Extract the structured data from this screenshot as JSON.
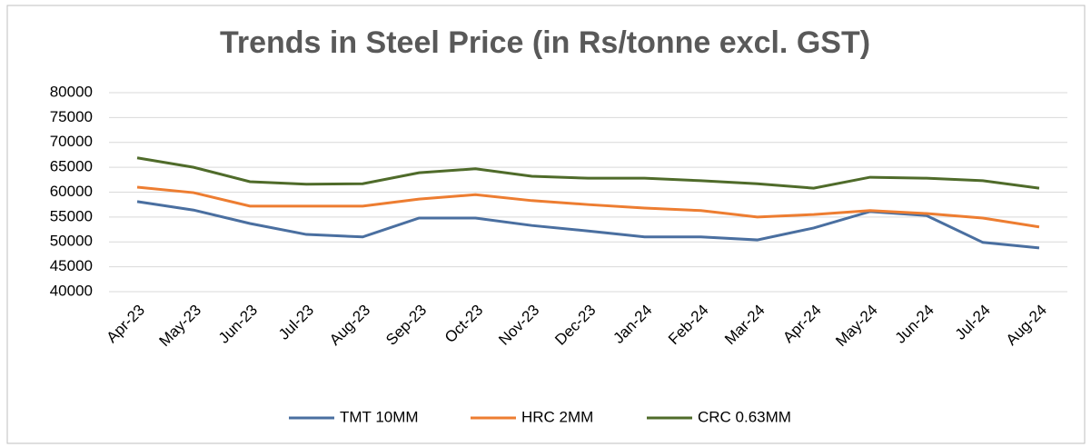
{
  "chart_data": {
    "type": "line",
    "title": "Trends in Steel Price (in Rs/tonne excl. GST)",
    "categories": [
      "Apr-23",
      "May-23",
      "Jun-23",
      "Jul-23",
      "Aug-23",
      "Sep-23",
      "Oct-23",
      "Nov-23",
      "Dec-23",
      "Jan-24",
      "Feb-24",
      "Mar-24",
      "Apr-24",
      "May-24",
      "Jun-24",
      "Jul-24",
      "Aug-24"
    ],
    "series": [
      {
        "name": "TMT 10MM",
        "color": "#4a6fa0",
        "values": [
          58100,
          56400,
          53700,
          51500,
          51000,
          54800,
          54800,
          53300,
          52200,
          51000,
          51000,
          50400,
          52800,
          56100,
          55300,
          49900,
          48800
        ]
      },
      {
        "name": "HRC 2MM",
        "color": "#ed7d31",
        "values": [
          61000,
          59900,
          57200,
          57200,
          57200,
          58600,
          59500,
          58300,
          57500,
          56800,
          56300,
          55000,
          55500,
          56300,
          55700,
          54800,
          53000
        ]
      },
      {
        "name": "CRC 0.63MM",
        "color": "#4f6b2a",
        "values": [
          66900,
          65000,
          62100,
          61600,
          61700,
          63900,
          64700,
          63200,
          62800,
          62800,
          62300,
          61700,
          60800,
          63000,
          62800,
          62300,
          60800
        ]
      }
    ],
    "ylim": [
      40000,
      80000
    ],
    "yticks": [
      40000,
      45000,
      50000,
      55000,
      60000,
      65000,
      70000,
      75000,
      80000
    ],
    "grid": true,
    "legend": "bottom"
  }
}
